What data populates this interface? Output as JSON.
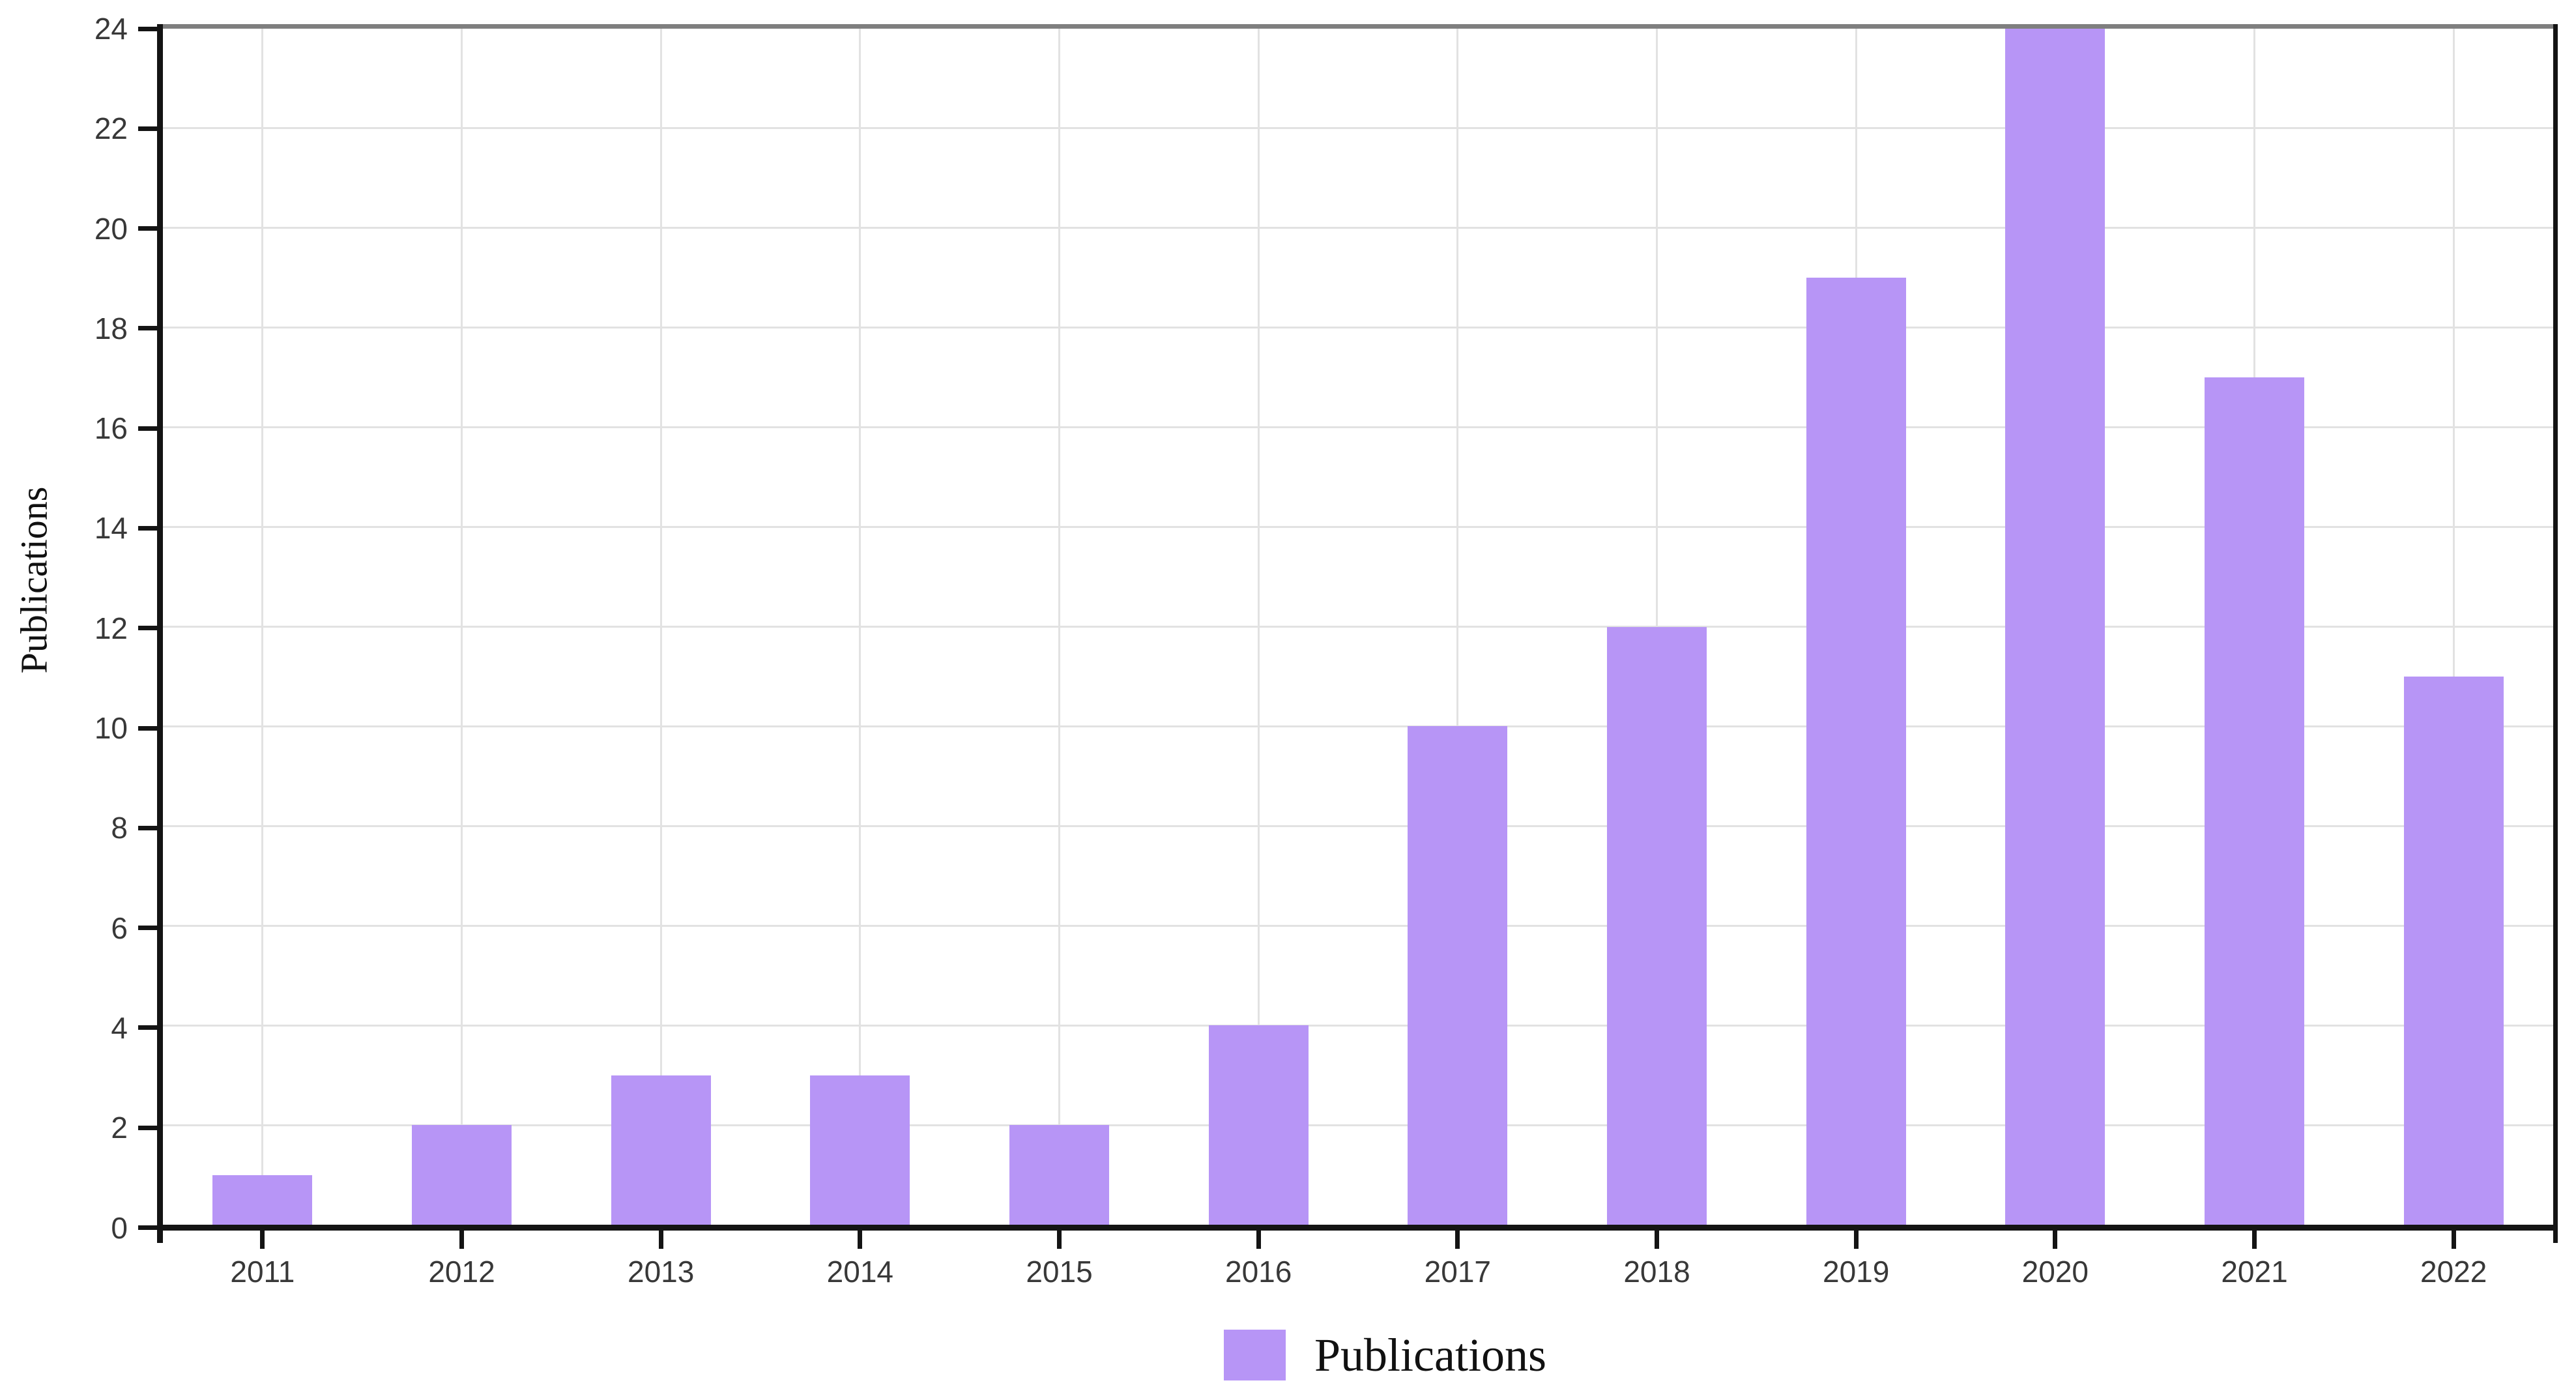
{
  "chart_data": {
    "type": "bar",
    "title": "",
    "categories": [
      "2011",
      "2012",
      "2013",
      "2014",
      "2015",
      "2016",
      "2017",
      "2018",
      "2019",
      "2020",
      "2021",
      "2022"
    ],
    "series": [
      {
        "name": "Publications",
        "values": [
          1,
          2,
          3,
          3,
          2,
          4,
          10,
          12,
          19,
          24,
          17,
          11
        ]
      }
    ],
    "xlabel": "",
    "ylabel": "Publications",
    "ylim": [
      0,
      24
    ],
    "yticks": [
      0,
      2,
      4,
      6,
      8,
      10,
      12,
      14,
      16,
      18,
      20,
      22,
      24
    ],
    "grid": "both",
    "legend": {
      "position": "bottom",
      "entries": [
        {
          "label": "Publications",
          "color": "#b795f6"
        }
      ]
    }
  },
  "colors": {
    "bar": "#b795f6",
    "axis": "#141414",
    "top_border": "#7f7f7f",
    "gridline": "#e2e2e2",
    "tick_text": "#383838"
  }
}
